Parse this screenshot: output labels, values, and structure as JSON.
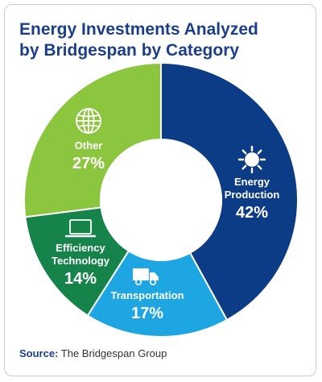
{
  "chart_data": {
    "type": "pie",
    "title_lines": [
      "Energy Investments Analyzed",
      "by Bridgespan by Category"
    ],
    "slices": [
      {
        "label_lines": [
          "Energy",
          "Production"
        ],
        "value": 42,
        "value_label": "42%",
        "color": "#0d3c86",
        "icon": "sun-icon"
      },
      {
        "label_lines": [
          "Transportation"
        ],
        "value": 17,
        "value_label": "17%",
        "color": "#1ea6e2",
        "icon": "truck-icon"
      },
      {
        "label_lines": [
          "Efficiency",
          "Technology"
        ],
        "value": 14,
        "value_label": "14%",
        "color": "#16844a",
        "icon": "laptop-icon"
      },
      {
        "label_lines": [
          "Other"
        ],
        "value": 27,
        "value_label": "27%",
        "color": "#8cc63f",
        "icon": "globe-icon"
      }
    ]
  },
  "source": {
    "label": "Source:",
    "text": "The Bridgespan Group"
  }
}
